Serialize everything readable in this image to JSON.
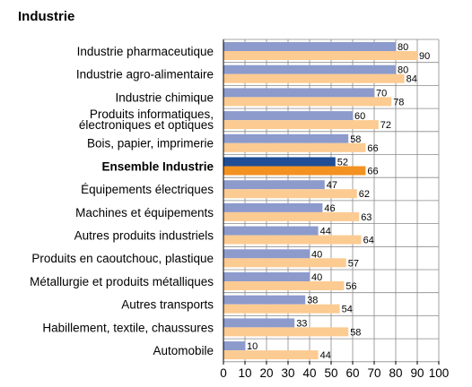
{
  "chart_data": {
    "type": "bar",
    "orientation": "horizontal",
    "title": "Industrie",
    "categories": [
      "Industrie pharmaceutique",
      "Industrie agro-alimentaire",
      "Industrie chimique",
      "Produits informatiques,\nélectroniques et optiques",
      "Bois, papier, imprimerie",
      "Ensemble Industrie",
      "Équipements électriques",
      "Machines et équipements",
      "Autres produits industriels",
      "Produits en caoutchouc, plastique",
      "Métallurgie et produits métalliques",
      "Autres transports",
      "Habillement, textile, chaussures",
      "Automobile"
    ],
    "highlight_category": "Ensemble Industrie",
    "series": [
      {
        "values": [
          80,
          80,
          70,
          60,
          58,
          52,
          47,
          46,
          44,
          40,
          40,
          38,
          33,
          10
        ]
      },
      {
        "values": [
          90,
          84,
          78,
          72,
          66,
          66,
          62,
          63,
          64,
          57,
          56,
          54,
          58,
          44
        ]
      }
    ],
    "xlim": [
      0,
      100
    ],
    "xticks": [
      0,
      10,
      20,
      30,
      40,
      50,
      60,
      70,
      80,
      90,
      100
    ],
    "grid": true,
    "colors": {
      "series1": "#8c9acc",
      "series2": "#fccb92",
      "series1_highlight": "#1f4e96",
      "series2_highlight": "#f39221",
      "grid": "#8a8a8a"
    }
  }
}
